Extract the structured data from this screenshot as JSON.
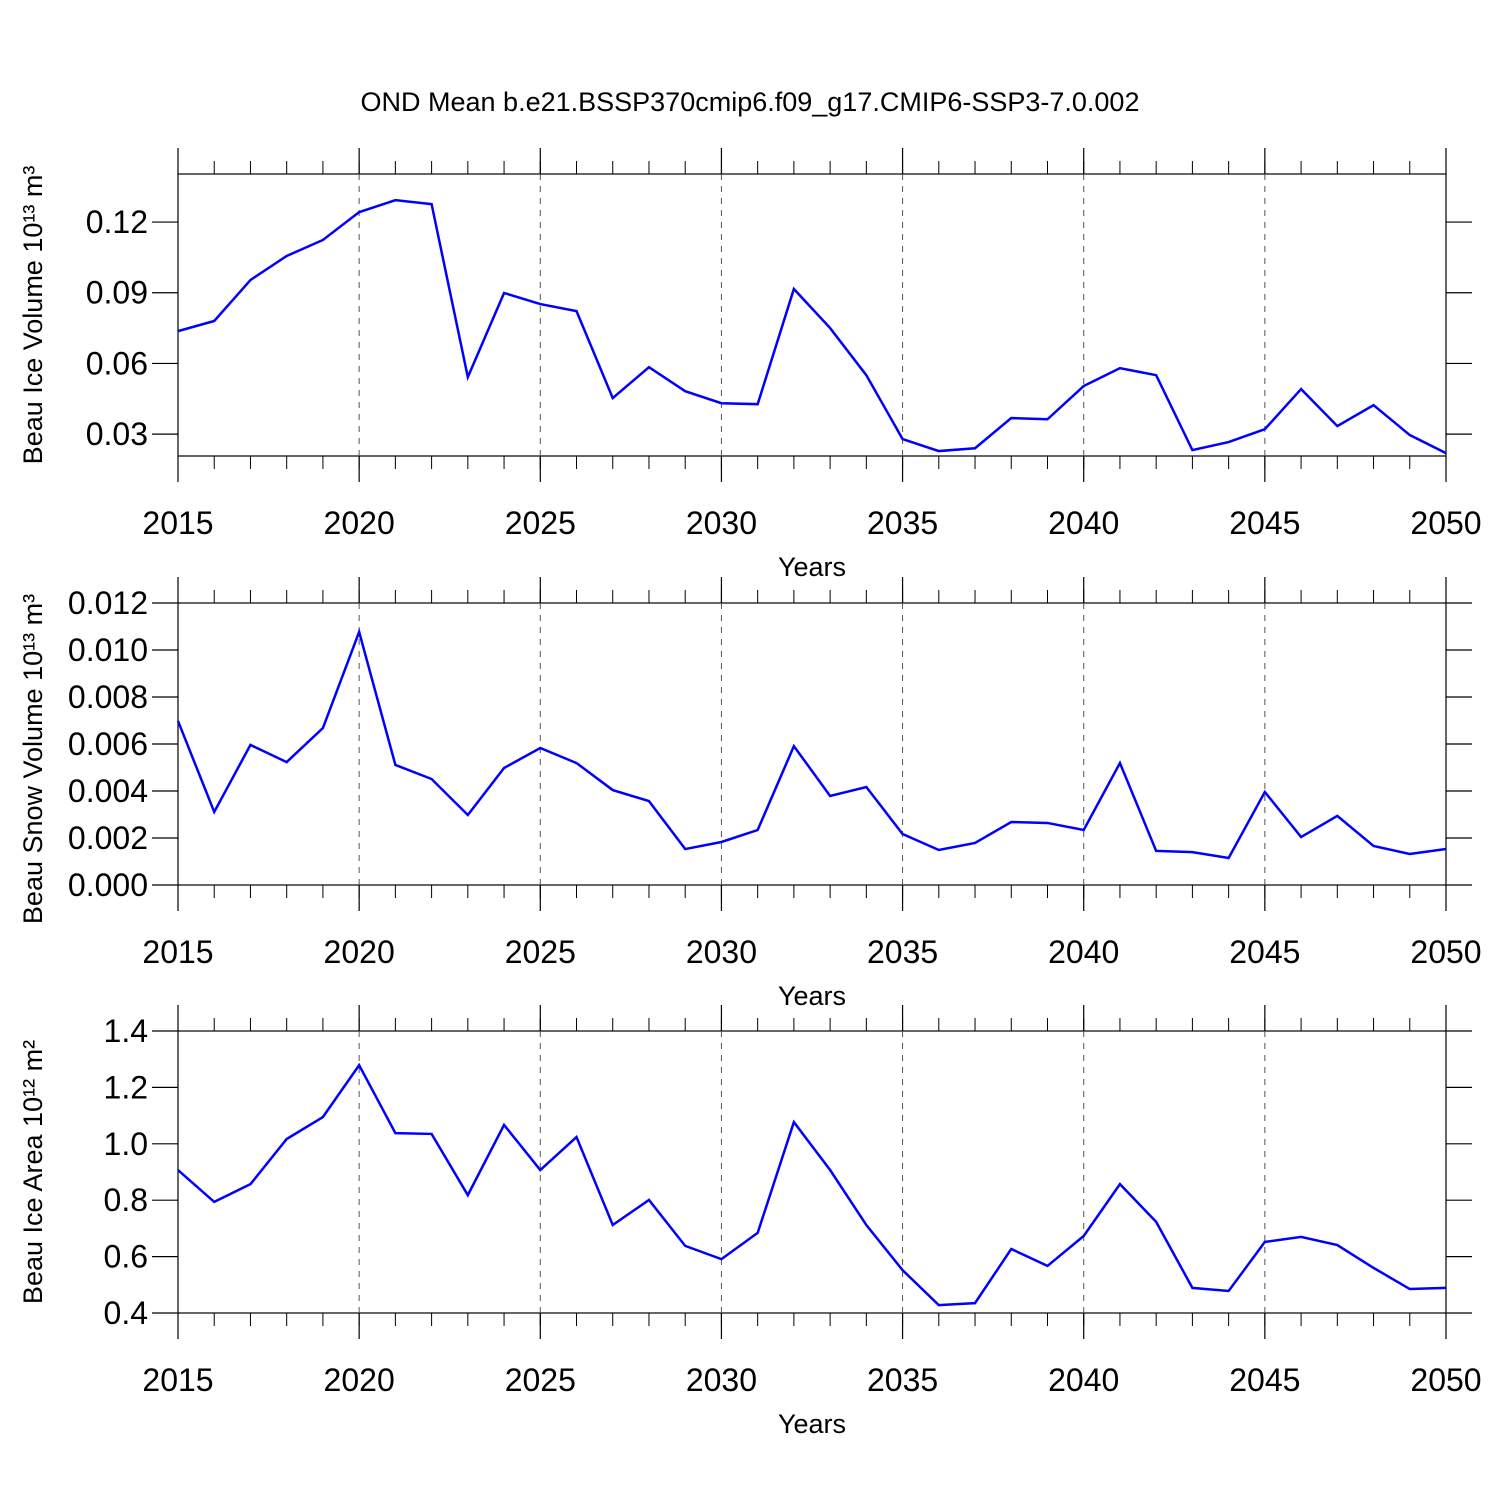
{
  "chart_data": [
    {
      "type": "line",
      "title": "OND Mean b.e21.BSSP370cmip6.f09_g17.CMIP6-SSP3-7.0.002",
      "xlabel": "Years",
      "ylabel": "Beau Ice Volume 10¹³ m³",
      "x": [
        2015,
        2016,
        2017,
        2018,
        2019,
        2020,
        2021,
        2022,
        2023,
        2024,
        2025,
        2026,
        2027,
        2028,
        2029,
        2030,
        2031,
        2032,
        2033,
        2034,
        2035,
        2036,
        2037,
        2038,
        2039,
        2040,
        2041,
        2042,
        2043,
        2044,
        2045,
        2046,
        2047,
        2048,
        2049,
        2050
      ],
      "series": [
        {
          "color": "#0000ff",
          "values": [
            0.0737,
            0.078,
            0.0954,
            0.1056,
            0.1124,
            0.1242,
            0.1293,
            0.1276,
            0.0542,
            0.0899,
            0.0852,
            0.0822,
            0.0453,
            0.0584,
            0.0482,
            0.0431,
            0.0427,
            0.0916,
            0.075,
            0.055,
            0.0279,
            0.0228,
            0.024,
            0.0368,
            0.0363,
            0.0504,
            0.058,
            0.055,
            0.0232,
            0.0266,
            0.0321,
            0.0491,
            0.0334,
            0.0423,
            0.0296,
            0.0219
          ]
        }
      ],
      "xlim": [
        2015,
        2050
      ],
      "xticks": [
        2015,
        2020,
        2025,
        2030,
        2035,
        2040,
        2045,
        2050
      ],
      "ylim": [
        0.0207,
        0.1404
      ],
      "yticks": [
        0.03,
        0.06,
        0.09,
        0.12
      ],
      "xgrid": true
    },
    {
      "type": "line",
      "xlabel": "Years",
      "ylabel": "Beau Snow Volume 10¹³ m³",
      "x": [
        2015,
        2016,
        2017,
        2018,
        2019,
        2020,
        2021,
        2022,
        2023,
        2024,
        2025,
        2026,
        2027,
        2028,
        2029,
        2030,
        2031,
        2032,
        2033,
        2034,
        2035,
        2036,
        2037,
        2038,
        2039,
        2040,
        2041,
        2042,
        2043,
        2044,
        2045,
        2046,
        2047,
        2048,
        2049,
        2050
      ],
      "series": [
        {
          "color": "#0000ff",
          "values": [
            0.00698,
            0.00311,
            0.00596,
            0.00523,
            0.00668,
            0.01077,
            0.00511,
            0.00451,
            0.00298,
            0.00498,
            0.00583,
            0.00519,
            0.00404,
            0.00357,
            0.00153,
            0.00183,
            0.00234,
            0.00591,
            0.00379,
            0.00417,
            0.00217,
            0.00149,
            0.00179,
            0.00268,
            0.00264,
            0.00234,
            0.00519,
            0.00145,
            0.0014,
            0.00115,
            0.00396,
            0.00204,
            0.00294,
            0.00166,
            0.00132,
            0.00153
          ]
        }
      ],
      "xlim": [
        2015,
        2050
      ],
      "xticks": [
        2015,
        2020,
        2025,
        2030,
        2035,
        2040,
        2045,
        2050
      ],
      "ylim": [
        0,
        0.012
      ],
      "yticks": [
        {
          "value": 0,
          "label": "0.000"
        },
        0.002,
        0.004,
        0.006,
        0.008,
        {
          "value": 0.01,
          "label": "0.010"
        },
        0.012
      ],
      "xgrid": true
    },
    {
      "type": "line",
      "xlabel": "Years",
      "ylabel": "Beau Ice Area 10¹² m²",
      "x": [
        2015,
        2016,
        2017,
        2018,
        2019,
        2020,
        2021,
        2022,
        2023,
        2024,
        2025,
        2026,
        2027,
        2028,
        2029,
        2030,
        2031,
        2032,
        2033,
        2034,
        2035,
        2036,
        2037,
        2038,
        2039,
        2040,
        2041,
        2042,
        2043,
        2044,
        2045,
        2046,
        2047,
        2048,
        2049,
        2050
      ],
      "series": [
        {
          "color": "#0000ff",
          "values": [
            0.907,
            0.794,
            0.857,
            1.017,
            1.095,
            1.279,
            1.038,
            1.035,
            0.818,
            1.067,
            0.907,
            1.024,
            0.712,
            0.801,
            0.638,
            0.591,
            0.684,
            1.077,
            0.907,
            0.712,
            0.552,
            0.428,
            0.435,
            0.627,
            0.567,
            0.673,
            0.857,
            0.723,
            0.489,
            0.478,
            0.652,
            0.67,
            0.641,
            0.56,
            0.485,
            0.489
          ]
        }
      ],
      "xlim": [
        2015,
        2050
      ],
      "xticks": [
        2015,
        2020,
        2025,
        2030,
        2035,
        2040,
        2045,
        2050
      ],
      "ylim": [
        0.4,
        1.4
      ],
      "yticks": [
        0.4,
        0.6,
        0.8,
        {
          "value": 1.0,
          "label": "1.0"
        },
        1.2,
        1.4
      ],
      "xgrid": true
    }
  ]
}
